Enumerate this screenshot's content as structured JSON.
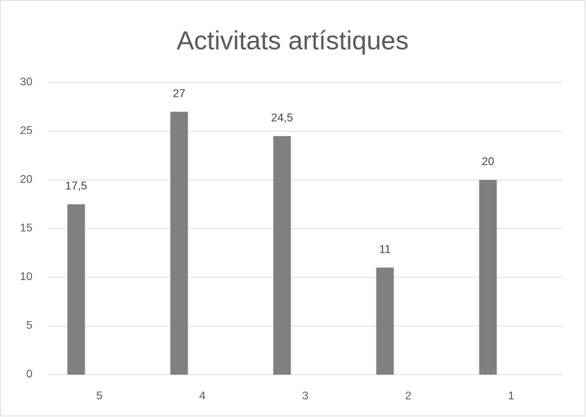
{
  "chart_data": {
    "type": "bar",
    "title": "Activitats artístiques",
    "categories": [
      "5",
      "4",
      "3",
      "2",
      "1"
    ],
    "values": [
      17.5,
      27,
      24.5,
      11,
      20
    ],
    "value_labels": [
      "17,5",
      "27",
      "24,5",
      "11",
      "20"
    ],
    "color": "#808080",
    "ylim": [
      0,
      30
    ],
    "yticks": [
      0,
      5,
      10,
      15,
      20,
      25,
      30
    ],
    "grid": true
  }
}
